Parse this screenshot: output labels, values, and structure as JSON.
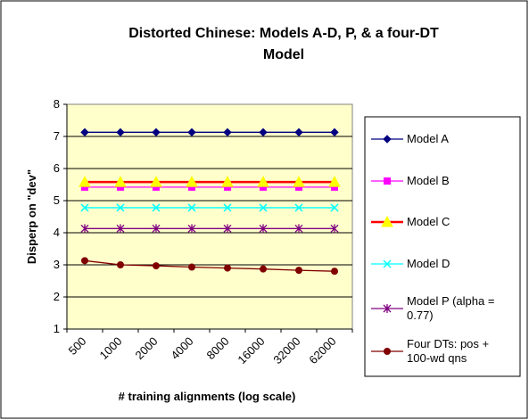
{
  "chart_data": {
    "type": "line",
    "title_lines": [
      "Distorted Chinese: Models A-D, P, & a four-DT",
      "Model"
    ],
    "xlabel": "# training alignments (log scale)",
    "ylabel": "Disperp on \"dev\"",
    "x_scale": "log",
    "x": [
      500,
      1000,
      2000,
      4000,
      8000,
      16000,
      32000,
      62000
    ],
    "x_tick_labels": [
      "500",
      "1000",
      "2000",
      "4000",
      "8000",
      "16000",
      "32000",
      "62000"
    ],
    "ylim": [
      1,
      8
    ],
    "y_ticks": [
      1,
      2,
      3,
      4,
      5,
      6,
      7,
      8
    ],
    "grid": true,
    "plot_background": "#ffffcc",
    "legend_placement": "right",
    "series": [
      {
        "name": "Model A",
        "color": "#000080",
        "marker": "diamond",
        "values": [
          7.13,
          7.13,
          7.13,
          7.13,
          7.13,
          7.13,
          7.13,
          7.13
        ]
      },
      {
        "name": "Model B",
        "color": "#ff00ff",
        "marker": "square",
        "values": [
          5.42,
          5.42,
          5.42,
          5.42,
          5.42,
          5.42,
          5.42,
          5.42
        ]
      },
      {
        "name": "Model C",
        "color": "#ff0000",
        "marker_color": "#ffff00",
        "marker": "triangle",
        "values": [
          5.58,
          5.58,
          5.58,
          5.58,
          5.58,
          5.58,
          5.58,
          5.58
        ]
      },
      {
        "name": "Model D",
        "color": "#00ffff",
        "marker": "x",
        "values": [
          4.78,
          4.78,
          4.78,
          4.78,
          4.78,
          4.78,
          4.78,
          4.78
        ]
      },
      {
        "name": "Model P (alpha = 0.77)",
        "legend_lines": [
          "Model P (alpha =",
          "0.77)"
        ],
        "color": "#800080",
        "marker": "star",
        "values": [
          4.13,
          4.13,
          4.13,
          4.13,
          4.13,
          4.13,
          4.13,
          4.13
        ]
      },
      {
        "name": "Four DTs: pos + 100-wd qns",
        "legend_lines": [
          "Four DTs: pos +",
          "100-wd qns"
        ],
        "color": "#800000",
        "marker": "circle",
        "values": [
          3.13,
          3.0,
          2.97,
          2.93,
          2.9,
          2.87,
          2.83,
          2.8
        ]
      }
    ]
  }
}
